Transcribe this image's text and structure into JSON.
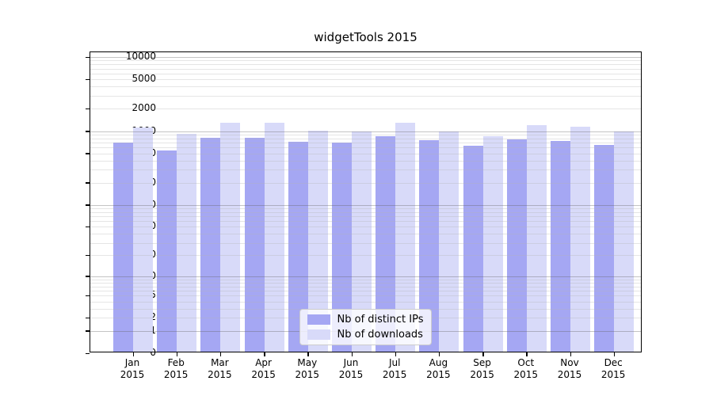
{
  "chart_data": {
    "type": "bar",
    "title": "widgetTools 2015",
    "categories": [
      "Jan",
      "Feb",
      "Mar",
      "Apr",
      "May",
      "Jun",
      "Jul",
      "Aug",
      "Sep",
      "Oct",
      "Nov",
      "Dec"
    ],
    "year_label": "2015",
    "series": [
      {
        "name": "Nb of distinct IPs",
        "color": "#a5a7f3",
        "values": [
          660,
          520,
          780,
          780,
          675,
          660,
          815,
          715,
          600,
          735,
          700,
          620
        ]
      },
      {
        "name": "Nb of downloads",
        "color": "#d8daf9",
        "values": [
          1060,
          870,
          1235,
          1235,
          975,
          950,
          1225,
          935,
          815,
          1150,
          1085,
          950
        ]
      }
    ],
    "xlabel": "",
    "ylabel": "",
    "y_scale": "log10(1+x)",
    "ylim": [
      0,
      10000
    ],
    "y_tick_values": [
      0,
      1,
      2,
      5,
      10,
      20,
      50,
      100,
      200,
      500,
      1000,
      2000,
      5000,
      10000
    ],
    "grid": "on",
    "grid_major_color": "#c9c9c9",
    "grid_minor_color": "#e4e4e4",
    "legend_position": "lower center"
  }
}
